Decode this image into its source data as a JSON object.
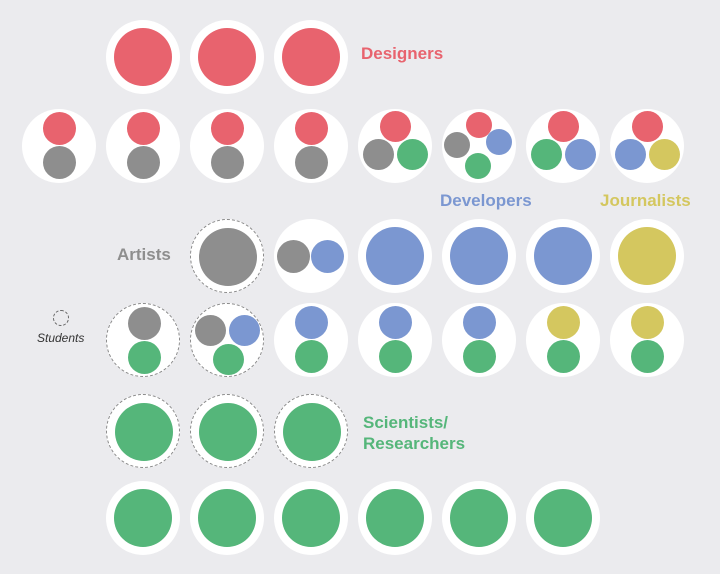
{
  "colors": {
    "designers": "#e8636e",
    "artists": "#8e8e8e",
    "developers": "#7b97d1",
    "journalists": "#d4c75f",
    "scientists": "#55b67a"
  },
  "labels": {
    "designers": "Designers",
    "developers": "Developers",
    "journalists": "Journalists",
    "artists": "Artists",
    "scientists": "Scientists/\nResearchers"
  },
  "legend": {
    "students": "Students"
  },
  "rows": [
    {
      "cells": [
        {
          "dashed": false,
          "groups": [
            "designers"
          ]
        },
        {
          "dashed": false,
          "groups": [
            "designers"
          ]
        },
        {
          "dashed": false,
          "groups": [
            "designers"
          ]
        }
      ]
    },
    {
      "cells": [
        {
          "dashed": false,
          "groups": [
            "designers",
            "artists"
          ]
        },
        {
          "dashed": false,
          "groups": [
            "designers",
            "artists"
          ]
        },
        {
          "dashed": false,
          "groups": [
            "designers",
            "artists"
          ]
        },
        {
          "dashed": false,
          "groups": [
            "designers",
            "artists"
          ]
        },
        {
          "dashed": false,
          "groups": [
            "designers",
            "artists",
            "scientists"
          ]
        },
        {
          "dashed": false,
          "groups": [
            "designers",
            "artists",
            "developers",
            "scientists"
          ]
        },
        {
          "dashed": false,
          "groups": [
            "designers",
            "scientists",
            "developers"
          ]
        },
        {
          "dashed": false,
          "groups": [
            "designers",
            "developers",
            "journalists"
          ]
        }
      ]
    },
    {
      "cells": [
        {
          "dashed": true,
          "groups": [
            "artists"
          ]
        },
        {
          "dashed": false,
          "groups": [
            "artists",
            "developers"
          ]
        },
        {
          "dashed": false,
          "groups": [
            "developers"
          ]
        },
        {
          "dashed": false,
          "groups": [
            "developers"
          ]
        },
        {
          "dashed": false,
          "groups": [
            "developers"
          ]
        },
        {
          "dashed": false,
          "groups": [
            "journalists"
          ]
        }
      ]
    },
    {
      "cells": [
        {
          "dashed": true,
          "groups": [
            "artists",
            "scientists"
          ]
        },
        {
          "dashed": true,
          "groups": [
            "artists",
            "developers",
            "scientists"
          ]
        },
        {
          "dashed": false,
          "groups": [
            "developers",
            "scientists"
          ]
        },
        {
          "dashed": false,
          "groups": [
            "developers",
            "scientists"
          ]
        },
        {
          "dashed": false,
          "groups": [
            "developers",
            "scientists"
          ]
        },
        {
          "dashed": false,
          "groups": [
            "journalists",
            "scientists"
          ]
        },
        {
          "dashed": false,
          "groups": [
            "journalists",
            "scientists"
          ]
        }
      ]
    },
    {
      "cells": [
        {
          "dashed": true,
          "groups": [
            "scientists"
          ]
        },
        {
          "dashed": true,
          "groups": [
            "scientists"
          ]
        },
        {
          "dashed": true,
          "groups": [
            "scientists"
          ]
        }
      ]
    },
    {
      "cells": [
        {
          "dashed": false,
          "groups": [
            "scientists"
          ]
        },
        {
          "dashed": false,
          "groups": [
            "scientists"
          ]
        },
        {
          "dashed": false,
          "groups": [
            "scientists"
          ]
        },
        {
          "dashed": false,
          "groups": [
            "scientists"
          ]
        },
        {
          "dashed": false,
          "groups": [
            "scientists"
          ]
        },
        {
          "dashed": false,
          "groups": [
            "scientists"
          ]
        }
      ]
    }
  ]
}
